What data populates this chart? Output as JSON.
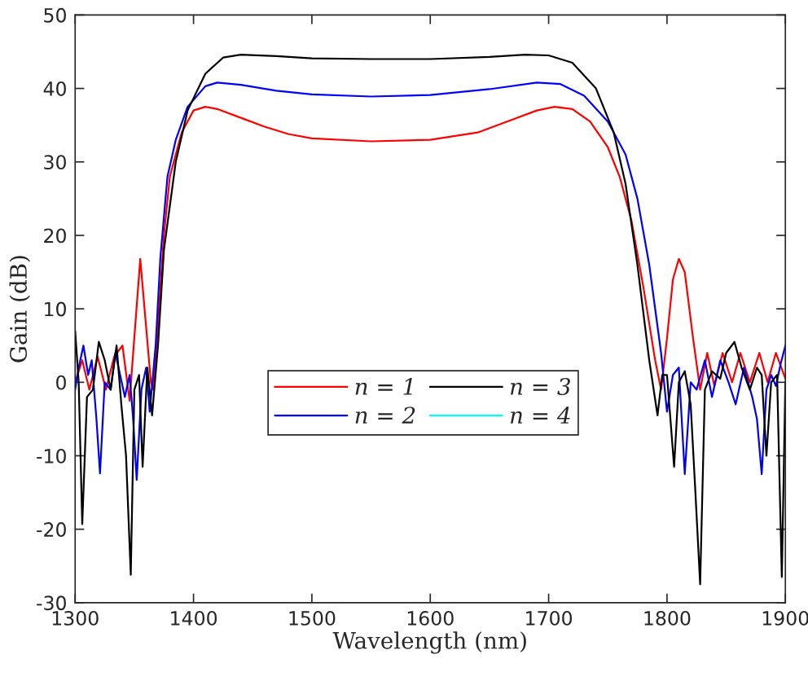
{
  "chart_data": {
    "type": "line",
    "xlabel": "Wavelength (nm)",
    "ylabel": "Gain (dB)",
    "xlim": [
      1300,
      1900
    ],
    "xticks": [
      1300,
      1400,
      1500,
      1600,
      1700,
      1800,
      1900
    ],
    "ylim": [
      -30,
      50
    ],
    "yticks": [
      -30,
      -20,
      -10,
      0,
      10,
      20,
      30,
      40,
      50
    ],
    "grid": false,
    "legend": "center",
    "marker": "none",
    "line_style": "solid",
    "series": [
      {
        "name": "n = 1",
        "color": "#ff0000",
        "x": [
          1300,
          1306,
          1312,
          1319,
          1326,
          1333,
          1340,
          1346,
          1355,
          1364,
          1366,
          1370,
          1375,
          1380,
          1390,
          1400,
          1410,
          1420,
          1440,
          1460,
          1480,
          1500,
          1550,
          1600,
          1640,
          1670,
          1690,
          1705,
          1720,
          1735,
          1750,
          1760,
          1770,
          1780,
          1790,
          1795,
          1800,
          1805,
          1810,
          1815,
          1822,
          1828,
          1834,
          1840,
          1847,
          1855,
          1862,
          1870,
          1878,
          1885,
          1892,
          1900
        ],
        "values": [
          0,
          3,
          -1,
          3.5,
          -1,
          3.5,
          5,
          -2.5,
          16.8,
          0,
          -1,
          8,
          20,
          28,
          34,
          37,
          37.5,
          37.2,
          36,
          34.8,
          33.8,
          33.2,
          32.8,
          33,
          34,
          35.8,
          37,
          37.5,
          37.2,
          35.5,
          32,
          28,
          22,
          13,
          3,
          -1,
          6,
          14,
          16.8,
          15,
          6,
          -1,
          4,
          -0.5,
          4,
          0,
          4,
          0,
          4,
          0,
          4,
          0.5
        ]
      },
      {
        "name": "n = 2",
        "color": "#0000ff",
        "x": [
          1300,
          1303,
          1307,
          1311,
          1314,
          1318,
          1321,
          1325,
          1330,
          1334,
          1338,
          1342,
          1346,
          1349,
          1352,
          1356,
          1360,
          1363,
          1368,
          1372,
          1378,
          1385,
          1395,
          1410,
          1420,
          1440,
          1470,
          1500,
          1550,
          1600,
          1650,
          1690,
          1710,
          1730,
          1750,
          1765,
          1775,
          1785,
          1795,
          1800,
          1805,
          1810,
          1815,
          1820,
          1825,
          1832,
          1838,
          1845,
          1852,
          1858,
          1865,
          1872,
          1876,
          1880,
          1884,
          1888,
          1892,
          1896,
          1900
        ],
        "values": [
          -1,
          2,
          5,
          1,
          3,
          -5,
          -12.4,
          0,
          -1,
          4,
          1,
          -2,
          1,
          -5,
          -13.3,
          -1,
          2,
          -4,
          5,
          17,
          28,
          33,
          37.5,
          40.3,
          40.8,
          40.5,
          39.7,
          39.2,
          38.9,
          39.1,
          39.9,
          40.8,
          40.6,
          39,
          35.5,
          31,
          25,
          16,
          4,
          -4,
          1,
          2,
          -12.5,
          0,
          -1,
          3,
          -2,
          3,
          0,
          -3,
          2,
          -2,
          -5,
          -12.5,
          -1,
          1,
          -0.5,
          2.5,
          5
        ]
      },
      {
        "name": "n = 3",
        "color": "#000000",
        "x": [
          1300,
          1303,
          1306,
          1310,
          1315,
          1320,
          1325,
          1330,
          1335,
          1339,
          1343,
          1347,
          1350,
          1354,
          1357,
          1361,
          1365,
          1370,
          1375,
          1385,
          1395,
          1410,
          1425,
          1440,
          1470,
          1500,
          1550,
          1600,
          1650,
          1680,
          1700,
          1720,
          1740,
          1755,
          1765,
          1775,
          1785,
          1792,
          1796,
          1800,
          1806,
          1810,
          1815,
          1820,
          1824,
          1828,
          1832,
          1838,
          1845,
          1850,
          1857,
          1863,
          1870,
          1876,
          1880,
          1884,
          1888,
          1893,
          1897,
          1900
        ],
        "values": [
          7,
          0,
          -19.3,
          -2,
          -1,
          5.5,
          3,
          -1,
          5,
          -3,
          -10,
          -26.2,
          -1,
          1,
          -11.5,
          2,
          -4.5,
          5,
          18,
          30,
          37,
          42,
          44.2,
          44.6,
          44.4,
          44.1,
          44,
          44,
          44.3,
          44.6,
          44.5,
          43.5,
          40,
          34,
          27,
          16,
          3,
          -4.5,
          1,
          1,
          -11.5,
          0,
          1.5,
          -3,
          -15,
          -27.5,
          -1,
          1.5,
          0.5,
          4,
          5.5,
          2,
          -1,
          2,
          1,
          -10,
          0,
          1,
          -26.5,
          0
        ]
      },
      {
        "name": "n = 4",
        "color": "#00ffff",
        "values": [
          null
        ]
      }
    ]
  }
}
